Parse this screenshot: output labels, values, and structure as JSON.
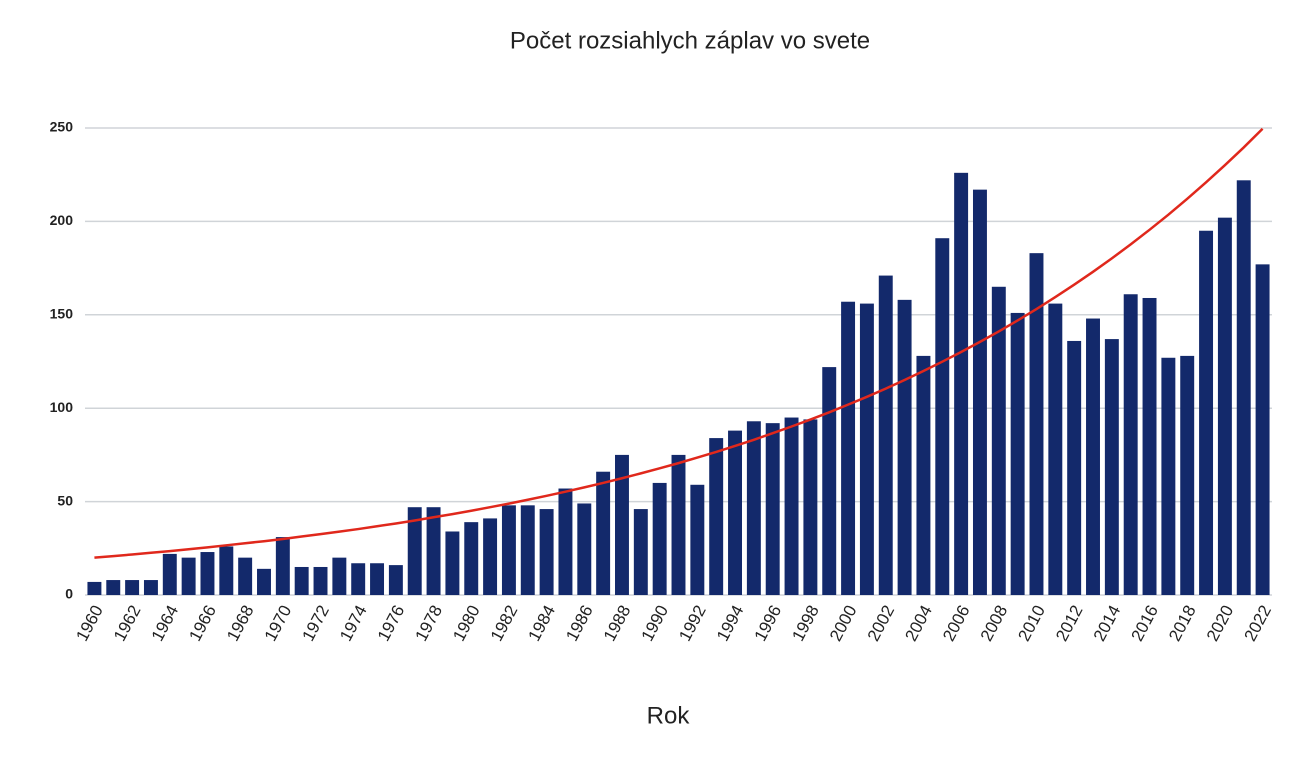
{
  "chart_data": {
    "type": "bar",
    "title": "Počet rozsiahlych záplav vo svete",
    "x_label": "Rok",
    "categories": [
      "1960",
      null,
      "1962",
      null,
      "1964",
      null,
      "1966",
      null,
      "1968",
      null,
      "1970",
      null,
      "1972",
      null,
      "1974",
      null,
      "1976",
      null,
      "1978",
      null,
      "1980",
      null,
      "1982",
      null,
      "1984",
      null,
      "1986",
      null,
      "1988",
      null,
      "1990",
      null,
      "1992",
      null,
      "1994",
      null,
      "1996",
      null,
      "1998",
      null,
      "2000",
      null,
      "2002",
      null,
      "2004",
      null,
      "2006",
      null,
      "2008",
      null,
      "2010",
      null,
      "2012",
      null,
      "2014",
      null,
      "2016",
      null,
      "2018",
      null,
      "2020",
      null,
      "2022"
    ],
    "series": [
      {
        "color": "#13296b",
        "values": [
          7,
          8,
          8,
          8,
          22,
          20,
          23,
          26,
          20,
          14,
          31,
          15,
          15,
          20,
          17,
          17,
          16,
          47,
          47,
          34,
          39,
          41,
          48,
          48,
          46,
          57,
          49,
          66,
          75,
          46,
          60,
          75,
          59,
          84,
          88,
          93,
          92,
          95,
          94,
          122,
          157,
          156,
          171,
          158,
          128,
          191,
          226,
          217,
          165,
          151,
          183,
          156,
          136,
          148,
          137,
          161,
          159,
          127,
          128,
          195,
          202,
          222,
          177
        ]
      },
      {
        "type": "line",
        "color": "#e0281c",
        "values": [
          20,
          20.8,
          21.7,
          22.6,
          23.5,
          24.5,
          25.5,
          26.6,
          27.7,
          28.8,
          30.0,
          31.3,
          32.6,
          33.9,
          35.3,
          36.8,
          38.3,
          39.9,
          41.6,
          43.3,
          45.1,
          47.0,
          48.9,
          51.0,
          53.1,
          55.3,
          57.6,
          60.0,
          62.5,
          65.1,
          67.8,
          70.6,
          73.6,
          76.6,
          79.8,
          83.1,
          86.6,
          90.2,
          93.9,
          97.8,
          101.9,
          106.1,
          110.5,
          115.1,
          119.9,
          124.9,
          130.1,
          135.5,
          141.1,
          147.0,
          153.1,
          159.5,
          166.1,
          173.0,
          180.2,
          187.7,
          195.5,
          203.6,
          212.1,
          220.9,
          230.1,
          239.6,
          249.6
        ]
      }
    ],
    "ylim": [
      0,
      250
    ],
    "yticks": [
      0,
      50,
      100,
      150,
      200,
      250
    ],
    "grid": true
  }
}
